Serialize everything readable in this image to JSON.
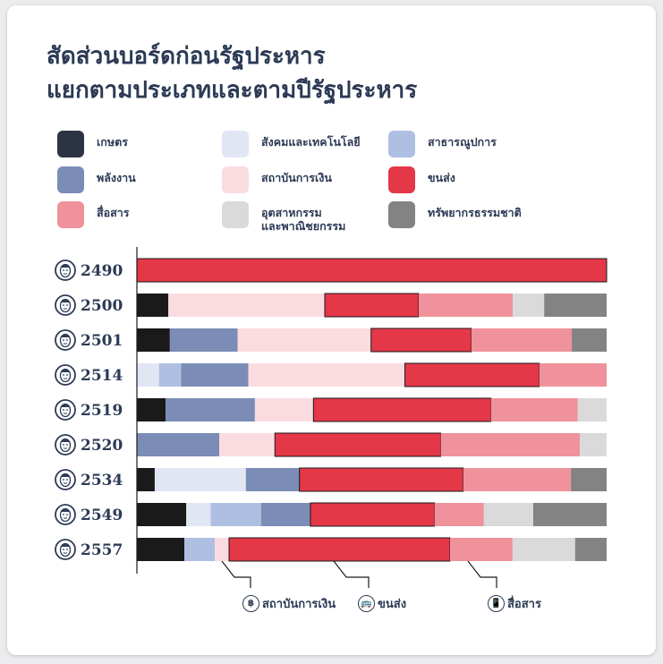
{
  "title_line1": "สัดส่วนบอร์ดก่อนรัฐประหาร",
  "title_line2": "แยกตามประเภทและตามปีรัฐประหาร",
  "legend": [
    {
      "label": "เกษตร",
      "color": "#2c3444"
    },
    {
      "label": "สังคมและเทคโนโลยี",
      "color": "#e1e6f3"
    },
    {
      "label": "สาธารณูปการ",
      "color": "#afbfe2"
    },
    {
      "label": "พลังงาน",
      "color": "#7b8db6"
    },
    {
      "label": "สถาบันการเงิน",
      "color": "#fadce0"
    },
    {
      "label": "ขนส่ง",
      "color": "#e43748"
    },
    {
      "label": "สื่อสาร",
      "color": "#f0929b"
    },
    {
      "label": "อุตสาหกรรม\nและพาณิชยกรรม",
      "color": "#dadada"
    },
    {
      "label": "ทรัพยากรธรรมชาติ",
      "color": "#838383"
    }
  ],
  "chart_data": {
    "type": "bar",
    "orientation": "horizontal",
    "stacked": true,
    "normalized": true,
    "categories": [
      "2490",
      "2500",
      "2501",
      "2514",
      "2519",
      "2520",
      "2534",
      "2549",
      "2557"
    ],
    "series": [
      {
        "name": "เกษตร",
        "color": "#1a1a1a",
        "values": [
          0,
          6.7,
          7.0,
          0,
          6.1,
          0,
          3.8,
          10.5,
          10.1
        ]
      },
      {
        "name": "สังคมและเทคโนโลยี",
        "color": "#e1e6f3",
        "values": [
          0,
          0,
          0,
          4.7,
          0,
          0,
          19.4,
          5.2,
          0
        ]
      },
      {
        "name": "สาธารณูปการ",
        "color": "#afbfe2",
        "values": [
          0,
          0,
          0,
          4.7,
          0,
          0,
          0,
          10.7,
          6.5
        ]
      },
      {
        "name": "พลังงาน",
        "color": "#7b8db6",
        "values": [
          0,
          0,
          14.4,
          14.3,
          18.9,
          17.5,
          11.4,
          10.5,
          0
        ]
      },
      {
        "name": "สถาบันการเงิน",
        "color": "#fadce0",
        "values": [
          0,
          33.3,
          28.3,
          33.3,
          12.4,
          11.8,
          0,
          0,
          3.0
        ]
      },
      {
        "name": "ขนส่ง",
        "color": "#e43748",
        "values": [
          100,
          20.0,
          21.3,
          28.6,
          37.6,
          35.2,
          34.9,
          26.4,
          47.0
        ]
      },
      {
        "name": "สื่อสาร",
        "color": "#f0929b",
        "values": [
          0,
          20.0,
          21.3,
          14.3,
          18.4,
          29.5,
          22.9,
          10.5,
          13.3
        ]
      },
      {
        "name": "อุตสาหกรรมและพาณิชยกรรม",
        "color": "#dadada",
        "values": [
          0,
          6.7,
          0,
          0,
          6.1,
          5.7,
          0,
          10.5,
          13.3
        ]
      },
      {
        "name": "ทรัพยากรธรรมชาติ",
        "color": "#838383",
        "values": [
          0,
          13.3,
          7.4,
          0,
          0,
          0,
          7.6,
          15.6,
          6.7
        ]
      }
    ]
  },
  "annotations": [
    {
      "label": "สถาบันการเงิน",
      "icon": "฿",
      "icon_name": "baht-icon"
    },
    {
      "label": "ขนส่ง",
      "icon": "🚌",
      "icon_name": "bus-icon"
    },
    {
      "label": "สื่อสาร",
      "icon": "📱",
      "icon_name": "phone-icon"
    }
  ],
  "colors": {
    "title": "#2c3a55",
    "axis": "#1a1a1a",
    "background": "#ffffff"
  }
}
